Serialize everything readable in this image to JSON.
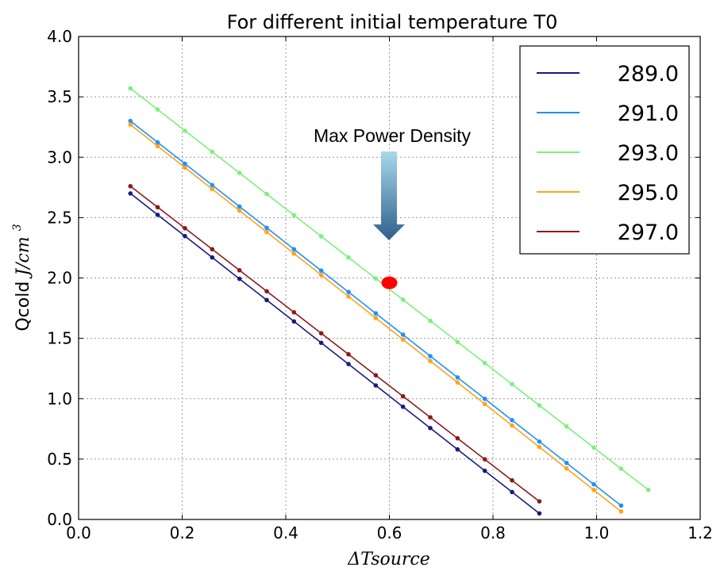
{
  "chart_data": {
    "type": "line",
    "title": "For different initial temperature T0",
    "xlabel": "ΔTsource",
    "ylabel_text": "Qcold",
    "ylabel_unit": "J/cm",
    "ylabel_exp": "3",
    "xlim": [
      0.0,
      1.2
    ],
    "ylim": [
      0.0,
      4.0
    ],
    "xticks": [
      "0.0",
      "0.2",
      "0.4",
      "0.6",
      "0.8",
      "1.0",
      "1.2"
    ],
    "yticks": [
      "0.0",
      "0.5",
      "1.0",
      "1.5",
      "2.0",
      "2.5",
      "3.0",
      "3.5",
      "4.0"
    ],
    "xtick_values": [
      0.0,
      0.2,
      0.4,
      0.6,
      0.8,
      1.0,
      1.2
    ],
    "ytick_values": [
      0.0,
      0.5,
      1.0,
      1.5,
      2.0,
      2.5,
      3.0,
      3.5,
      4.0
    ],
    "grid": true,
    "legend_position": "top-right",
    "series": [
      {
        "name": "289.0",
        "color": "#1a1a7e",
        "x": [
          0.1,
          0.1526,
          0.2053,
          0.2579,
          0.3105,
          0.3632,
          0.4158,
          0.4684,
          0.5211,
          0.5737,
          0.6263,
          0.6789,
          0.7316,
          0.7842,
          0.8368,
          0.8895
        ],
        "y": [
          2.7,
          2.523,
          2.347,
          2.17,
          1.993,
          1.817,
          1.64,
          1.463,
          1.287,
          1.11,
          0.933,
          0.757,
          0.58,
          0.403,
          0.227,
          0.05
        ]
      },
      {
        "name": "291.0",
        "color": "#1e90ff",
        "x": [
          0.1,
          0.1526,
          0.2053,
          0.2579,
          0.3105,
          0.3632,
          0.4158,
          0.4684,
          0.5211,
          0.5737,
          0.6263,
          0.6789,
          0.7316,
          0.7842,
          0.8368,
          0.8895,
          0.9421,
          0.9947,
          1.0474
        ],
        "y": [
          3.3,
          3.123,
          2.946,
          2.769,
          2.592,
          2.415,
          2.238,
          2.061,
          1.884,
          1.707,
          1.53,
          1.353,
          1.176,
          0.999,
          0.822,
          0.645,
          0.468,
          0.291,
          0.115
        ]
      },
      {
        "name": "293.0",
        "color": "#7cf07c",
        "x": [
          0.1,
          0.1526,
          0.2053,
          0.2579,
          0.3105,
          0.3632,
          0.4158,
          0.4684,
          0.5211,
          0.5737,
          0.6263,
          0.6789,
          0.7316,
          0.7842,
          0.8368,
          0.8895,
          0.9421,
          0.9947,
          1.0474,
          1.1
        ],
        "y": [
          3.57,
          3.395,
          3.22,
          3.045,
          2.87,
          2.695,
          2.52,
          2.345,
          2.17,
          1.995,
          1.82,
          1.645,
          1.47,
          1.295,
          1.12,
          0.945,
          0.77,
          0.595,
          0.42,
          0.245
        ]
      },
      {
        "name": "295.0",
        "color": "#ffa31a",
        "x": [
          0.1,
          0.1526,
          0.2053,
          0.2579,
          0.3105,
          0.3632,
          0.4158,
          0.4684,
          0.5211,
          0.5737,
          0.6263,
          0.6789,
          0.7316,
          0.7842,
          0.8368,
          0.8895,
          0.9421,
          0.9947,
          1.0474
        ],
        "y": [
          3.27,
          3.092,
          2.914,
          2.736,
          2.558,
          2.38,
          2.202,
          2.024,
          1.846,
          1.668,
          1.49,
          1.312,
          1.134,
          0.956,
          0.778,
          0.6,
          0.422,
          0.244,
          0.066
        ]
      },
      {
        "name": "297.0",
        "color": "#8b1a1a",
        "x": [
          0.1,
          0.1526,
          0.2053,
          0.2579,
          0.3105,
          0.3632,
          0.4158,
          0.4684,
          0.5211,
          0.5737,
          0.6263,
          0.6789,
          0.7316,
          0.7842,
          0.8368,
          0.8895
        ],
        "y": [
          2.76,
          2.586,
          2.412,
          2.238,
          2.064,
          1.89,
          1.716,
          1.542,
          1.368,
          1.194,
          1.02,
          0.846,
          0.672,
          0.498,
          0.324,
          0.15
        ]
      }
    ],
    "annotation": {
      "text": "Max Power Density",
      "marker_x": 0.6,
      "marker_y": 1.96,
      "marker_color": "#ff0000",
      "arrow_color_top": "#a8d8ea",
      "arrow_color_bottom": "#2e5f8a"
    }
  }
}
